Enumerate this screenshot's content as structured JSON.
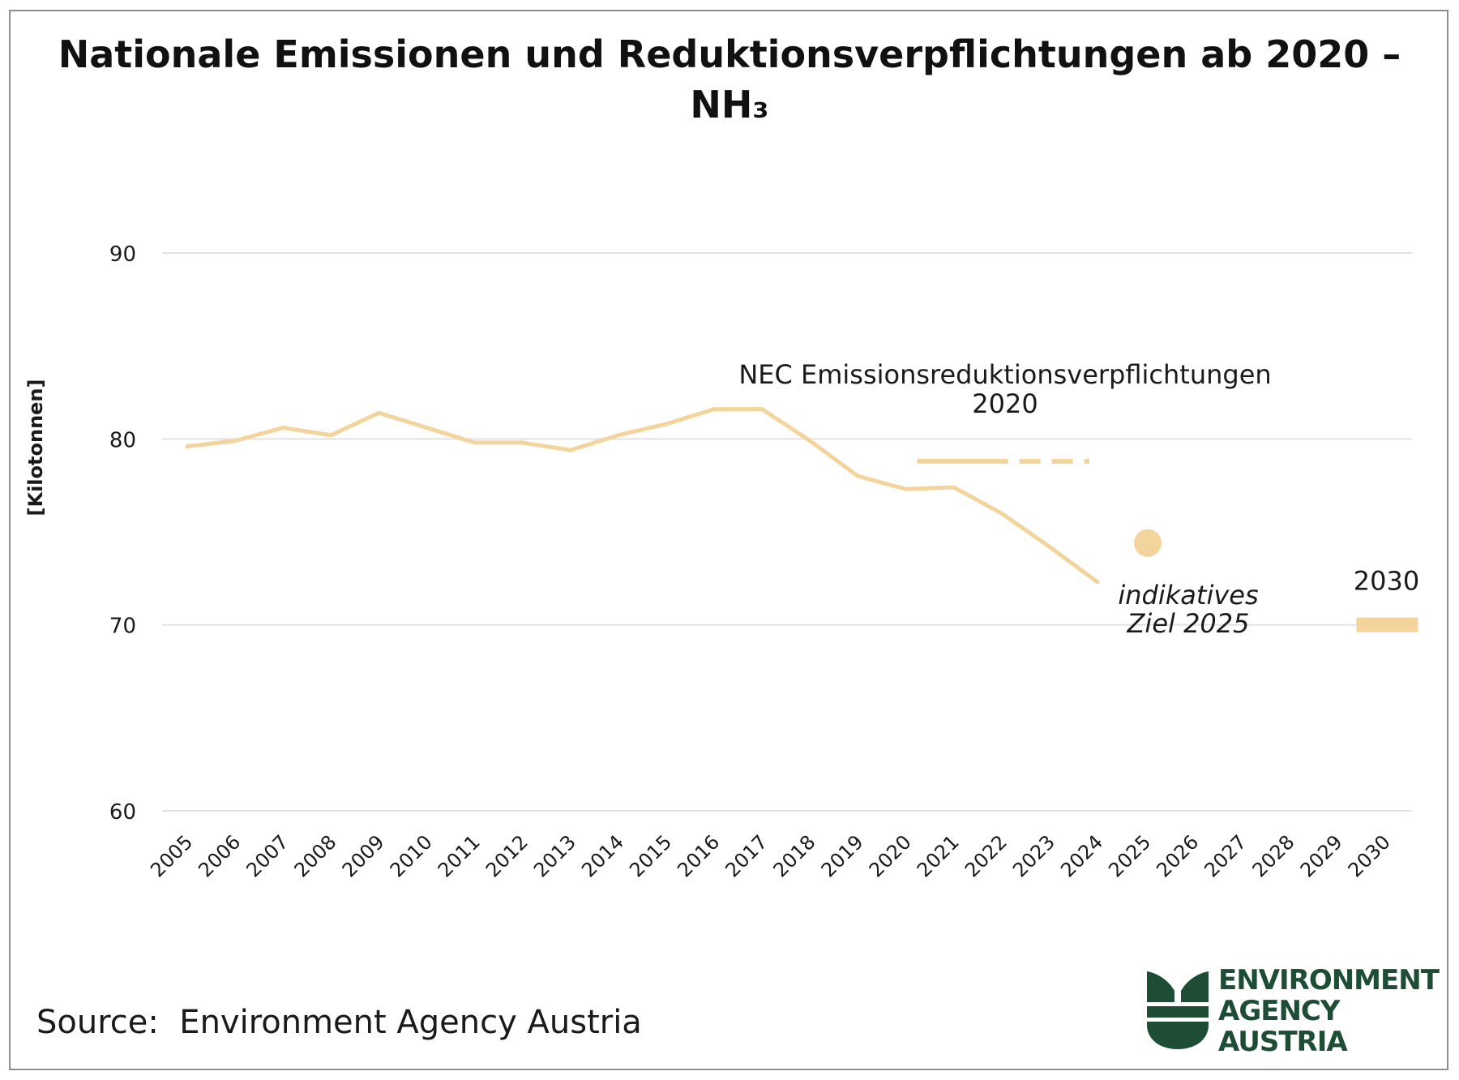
{
  "title": "Nationale Emissionen und Reduktionsverpflichtungen ab 2020 –",
  "title_line2": "NH₃",
  "source": "Source:  Environment Agency Austria",
  "logo": {
    "line1": "ENVIRONMENT",
    "line2": "AGENCY",
    "line3": "AUSTRIA"
  },
  "colors": {
    "series": "#f3d49c",
    "grid": "#e2e2e2",
    "text": "#1a1a1a",
    "logo": "#1e4d36"
  },
  "chart_data": {
    "type": "line",
    "ylabel": "[Kilotonnen]",
    "ylim": [
      60,
      90
    ],
    "yticks": [
      60,
      70,
      80,
      90
    ],
    "grid": true,
    "categories": [
      "2005",
      "2006",
      "2007",
      "2008",
      "2009",
      "2010",
      "2011",
      "2012",
      "2013",
      "2014",
      "2015",
      "2016",
      "2017",
      "2018",
      "2019",
      "2020",
      "2021",
      "2022",
      "2023",
      "2024",
      "2025",
      "2026",
      "2027",
      "2028",
      "2029",
      "2030"
    ],
    "series": [
      {
        "x": [
          "2005",
          "2006",
          "2007",
          "2008",
          "2009",
          "2010",
          "2011",
          "2012",
          "2013",
          "2014",
          "2015",
          "2016",
          "2017",
          "2018",
          "2019",
          "2020",
          "2021",
          "2022",
          "2023",
          "2024"
        ],
        "values": [
          79.6,
          79.9,
          80.6,
          80.2,
          81.4,
          80.6,
          79.8,
          79.8,
          79.4,
          80.2,
          80.8,
          81.6,
          81.6,
          79.9,
          78.0,
          77.3,
          77.4,
          76.0,
          74.2,
          72.3
        ]
      }
    ],
    "obligation_2020": {
      "value": 78.8,
      "solid_from": "2020",
      "solid_to": "2022",
      "dashed_from": "2022",
      "dashed_to": "2024",
      "label_line1": "NEC Emissionsreduktionsverpflichtungen",
      "label_line2": "2020"
    },
    "indicative_2025": {
      "x": "2025",
      "value": 74.4,
      "label_line1": "indikatives",
      "label_line2": "Ziel 2025"
    },
    "target_2030": {
      "x": "2030",
      "value": 70.0,
      "label": "2030"
    }
  }
}
